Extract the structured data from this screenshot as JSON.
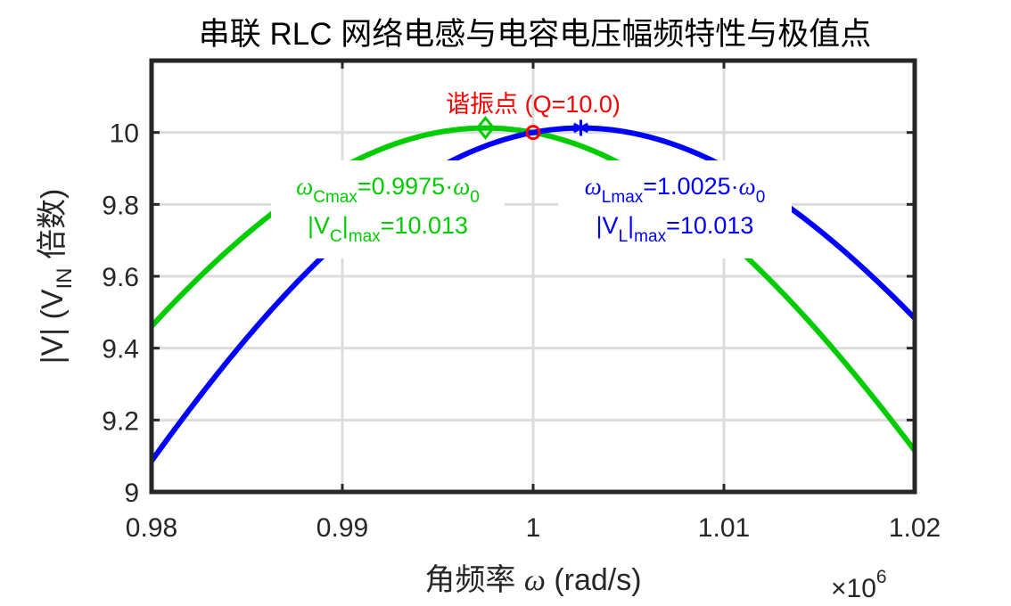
{
  "chart_data": {
    "type": "line",
    "title": "串联 RLC 网络电感与电容电压幅频特性与极值点",
    "xlabel_text": "角频率",
    "xlabel_symbol": "ω",
    "xlabel_unit": "(rad/s)",
    "x_multiplier": {
      "base": "×10",
      "exp": "6"
    },
    "ylabel_prefix": "|V| (V",
    "ylabel_sub": "IN",
    "ylabel_suffix": " 倍数)",
    "xlim": [
      0.98,
      1.02
    ],
    "ylim": [
      9.0,
      10.2
    ],
    "xticks": [
      0.98,
      0.99,
      1.0,
      1.01,
      1.02
    ],
    "xtick_labels": [
      "0.98",
      "0.99",
      "1",
      "1.01",
      "1.02"
    ],
    "yticks": [
      9.0,
      9.2,
      9.4,
      9.6,
      9.8,
      10.0
    ],
    "ytick_labels": [
      "9",
      "9.2",
      "9.4",
      "9.6",
      "9.8",
      "10"
    ],
    "grid": true,
    "Q": 10.0,
    "series": [
      {
        "color": "#0000ff",
        "kind": "VL"
      },
      {
        "color": "#00cc00",
        "kind": "VC"
      }
    ],
    "markers": {
      "resonance": {
        "x": 1.0,
        "y": 10.0,
        "color": "#ff0000",
        "label": "谐振点 (Q=10.0)"
      },
      "vc_max": {
        "x": 0.9975,
        "y": 10.013,
        "color": "#00cc00"
      },
      "vl_max": {
        "x": 1.0025,
        "y": 10.013,
        "color": "#0000ff"
      }
    },
    "annotations": {
      "vc": {
        "line1": {
          "sym": "ω",
          "sub": "Cmax",
          "mid": "=0.9975·",
          "sym2": "ω",
          "sub2": "0"
        },
        "line2": {
          "pre": "|V",
          "sub": "C",
          "mid": "|",
          "sub2": "max",
          "post": "=10.013"
        },
        "color": "#00cc00"
      },
      "vl": {
        "line1": {
          "sym": "ω",
          "sub": "Lmax",
          "mid": "=1.0025·",
          "sym2": "ω",
          "sub2": "0"
        },
        "line2": {
          "pre": "|V",
          "sub": "L",
          "mid": "|",
          "sub2": "max",
          "post": "=10.013"
        },
        "color": "#0000ff"
      }
    }
  }
}
